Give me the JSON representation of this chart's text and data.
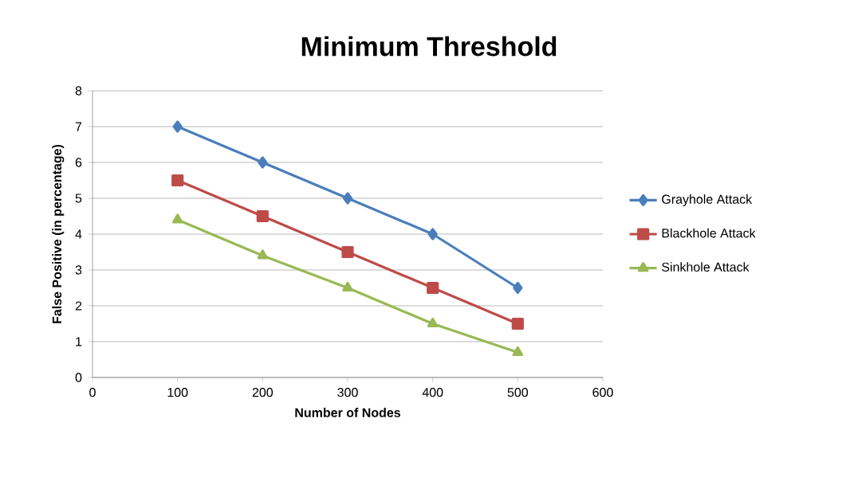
{
  "chart_data": {
    "type": "line",
    "title": "Minimum Threshold",
    "xlabel": "Number of Nodes",
    "ylabel": "False Positive  (in percentage)",
    "x": [
      100,
      200,
      300,
      400,
      500
    ],
    "series": [
      {
        "name": "Grayhole Attack",
        "color": "#4a7ebb",
        "marker": "diamond",
        "values": [
          7,
          6,
          5,
          4,
          2.5
        ]
      },
      {
        "name": "Blackhole Attack",
        "color": "#be4b48",
        "marker": "square",
        "values": [
          5.5,
          4.5,
          3.5,
          2.5,
          1.5
        ]
      },
      {
        "name": "Sinkhole Attack",
        "color": "#98b954",
        "marker": "triangle",
        "values": [
          4.4,
          3.4,
          2.5,
          1.5,
          0.7
        ]
      }
    ],
    "xlim": [
      0,
      600
    ],
    "xticks": [
      0,
      100,
      200,
      300,
      400,
      500,
      600
    ],
    "ylim": [
      0,
      8
    ],
    "yticks": [
      0,
      1,
      2,
      3,
      4,
      5,
      6,
      7,
      8
    ],
    "grid": "y",
    "legend": "right",
    "line_style": "solid"
  }
}
